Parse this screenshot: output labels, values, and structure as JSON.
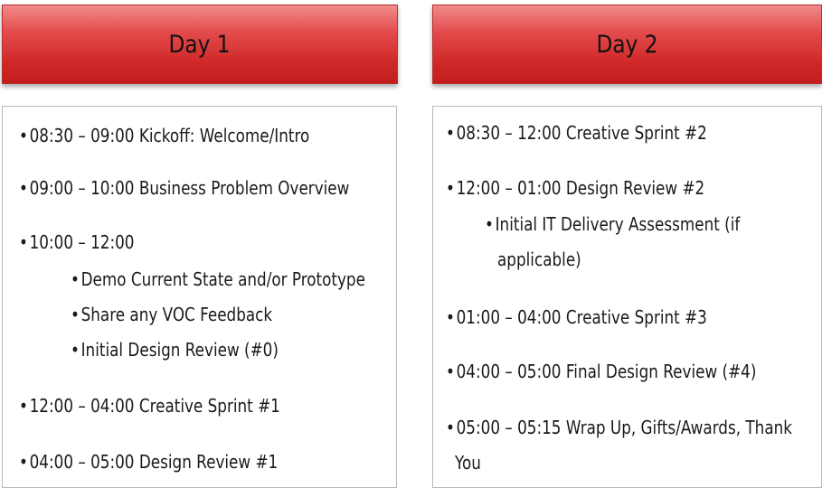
{
  "day1": {
    "title": "Day 1",
    "items": [
      "08:30 – 09:00 Kickoff: Welcome/Intro",
      "09:00 – 10:00 Business Problem Overview",
      "10:00 – 12:00",
      "Demo Current State and/or Prototype",
      "Share any VOC Feedback",
      "Initial Design Review (#0)",
      "12:00 – 04:00 Creative Sprint #1",
      "04:00 – 05:00 Design Review #1"
    ]
  },
  "day2": {
    "title": "Day 2",
    "items": [
      "08:30 – 12:00 Creative Sprint #2",
      "12:00 – 01:00 Design Review #2",
      "Initial IT Delivery Assessment (if",
      "applicable)",
      "01:00 – 04:00 Creative Sprint #3",
      "04:00 – 05:00 Final Design Review (#4)",
      "05:00 – 05:15 Wrap Up, Gifts/Awards, Thank",
      "You"
    ]
  },
  "bullet_glyph": "•",
  "colors": {
    "header_red": "#d93030",
    "text": "#1a1a1a"
  }
}
